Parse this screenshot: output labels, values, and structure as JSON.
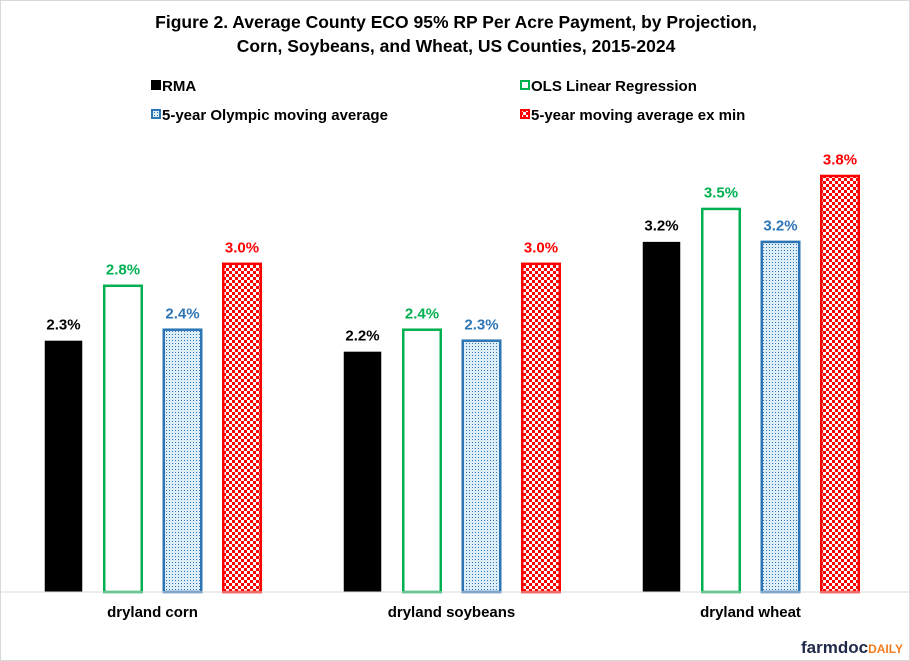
{
  "chart_data": {
    "type": "bar",
    "title_lines": [
      "Figure 2.  Average County ECO 95% RP Per Acre Payment, by Projection,",
      "Corn, Soybeans, and Wheat, US Counties, 2015-2024"
    ],
    "categories": [
      "dryland corn",
      "dryland soybeans",
      "dryland wheat"
    ],
    "series": [
      {
        "name": "RMA",
        "color": "#000000",
        "style": "solid",
        "values": [
          2.3,
          2.2,
          3.2
        ],
        "labels": [
          "2.3%",
          "2.2%",
          "3.2%"
        ]
      },
      {
        "name": "OLS Linear Regression",
        "color": "#00b050",
        "style": "outline",
        "values": [
          2.8,
          2.4,
          3.5
        ],
        "labels": [
          "2.8%",
          "2.4%",
          "3.5%"
        ]
      },
      {
        "name": "5-year Olympic moving average",
        "color": "#2e75b6",
        "style": "dotted",
        "values": [
          2.4,
          2.3,
          3.2
        ],
        "labels": [
          "2.4%",
          "2.3%",
          "3.2%"
        ]
      },
      {
        "name": "5-year moving average ex min",
        "color": "#ff0000",
        "style": "checker",
        "values": [
          3.0,
          3.0,
          3.8
        ],
        "labels": [
          "3.0%",
          "3.0%",
          "3.8%"
        ]
      }
    ],
    "xlabel": "",
    "ylabel": "",
    "ylim": [
      0,
      5.2
    ],
    "grid": false,
    "legend_position": "top"
  },
  "logo": {
    "part1": "farmdoc",
    "part2": "DAILY"
  }
}
